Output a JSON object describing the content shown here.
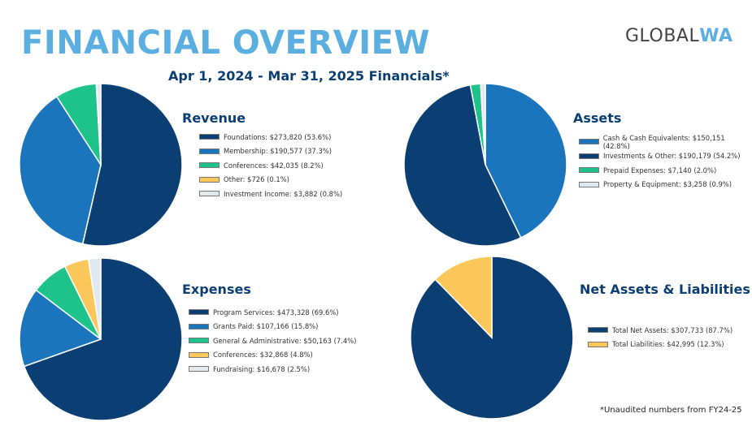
{
  "title": "FINANCIAL OVERVIEW",
  "subtitle": "Apr 1, 2024 - Mar 31, 2025 Financials*",
  "logo": "GLOBALWA",
  "footnote": "*Unaudited numbers from FY24-25",
  "chart_data": [
    {
      "type": "pie",
      "title": "Revenue",
      "labels": [
        "Foundations: $273,820 (53.6%)",
        "Membership: $190,577 (37.3%)",
        "Conferences: $42,035 (8.2%)",
        "Other: $726 (0.1%)",
        "Investment Income: $3,882 (0.8%)"
      ],
      "values": [
        273820,
        190577,
        42035,
        726,
        3882
      ],
      "colors": [
        "#0b3f73",
        "#1a75bc",
        "#1ec38b",
        "#fcc75a",
        "#e1e9f0"
      ],
      "legend": "right"
    },
    {
      "type": "pie",
      "title": "Assets",
      "labels": [
        "Cash & Cash Equivalents: $150,151 (42.8%)",
        "Investments & Other: $190,179 (54.2%)",
        "Prepaid Expenses: $7,140 (2.0%)",
        "Property & Equipment: $3,258 (0.9%)"
      ],
      "values": [
        150151,
        190179,
        7140,
        3258
      ],
      "colors": [
        "#1a75bc",
        "#0b3f73",
        "#1ec38b",
        "#e1e9f0"
      ],
      "legend": "right"
    },
    {
      "type": "pie",
      "title": "Expenses",
      "labels": [
        "Program Services: $473,328 (69.6%)",
        "Grants Paid: $107,166 (15.8%)",
        "General & Administrative: $50,163 (7.4%)",
        "Conferences: $32,868 (4.8%)",
        "Fundraising: $16,678 (2.5%)"
      ],
      "values": [
        473328,
        107166,
        50163,
        32868,
        16678
      ],
      "colors": [
        "#0b3f73",
        "#1a75bc",
        "#1ec38b",
        "#fcc75a",
        "#e1e9f0"
      ],
      "legend": "right"
    },
    {
      "type": "pie",
      "title": "Net Assets & Liabilities",
      "labels": [
        "Total Net Assets: $307,733 (87.7%)",
        "Total Liabilities: $42,995 (12.3%)"
      ],
      "values": [
        307733,
        42995
      ],
      "colors": [
        "#0b3f73",
        "#fcc75a"
      ],
      "legend": "right"
    }
  ]
}
